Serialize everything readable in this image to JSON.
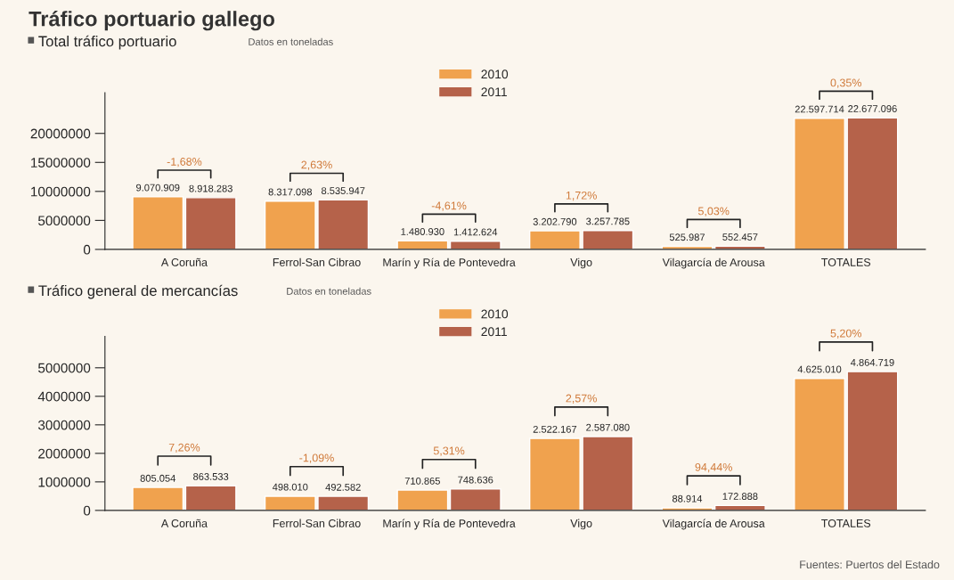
{
  "chart_data": [
    {
      "type": "bar",
      "title": "Tráfico portuario gallego",
      "subtitle": "Total tráfico portuario",
      "annotations": [
        "-1,68%",
        "2,63%",
        "-4,61%",
        "1,72%",
        "5,03%",
        "0,35%",
        "Datos en toneladas"
      ],
      "categories": [
        "A Coruña",
        "Ferrol-San Cibrao",
        "Marín y Ría de Pontevedra",
        "Vigo",
        "Vilagarcía de Arousa",
        "TOTALES"
      ],
      "series": [
        {
          "name": "2010",
          "color": "#f0a24e",
          "values": [
            9070909,
            8317098,
            1480930,
            3202790,
            525987,
            22597714
          ],
          "value_labels": [
            "9.070.909",
            "8.317.098",
            "1.480.930",
            "3.202.790",
            "525.987",
            "22.597.714"
          ]
        },
        {
          "name": "2011",
          "color": "#b5624a",
          "values": [
            8918283,
            8535947,
            1412624,
            3257785,
            552457,
            22677096
          ],
          "value_labels": [
            "8.918.283",
            "8.535.947",
            "1.412.624",
            "3.257.785",
            "552.457",
            "22.677.096"
          ]
        }
      ],
      "ylim": [
        0,
        27000000
      ],
      "yticks": [
        0,
        5000000,
        10000000,
        15000000,
        20000000
      ],
      "legend": "top",
      "grid": false
    },
    {
      "type": "bar",
      "title": "Tráfico general de mercancías",
      "annotations": [
        "7,26%",
        "-1,09%",
        "5,31%",
        "2,57%",
        "94,44%",
        "5,20%",
        "Datos en toneladas",
        "Fuentes: Puertos del Estado"
      ],
      "categories": [
        "A Coruña",
        "Ferrol-San Cibrao",
        "Marín y Ría de Pontevedra",
        "Vigo",
        "Vilagarcía de Arousa",
        "TOTALES"
      ],
      "series": [
        {
          "name": "2010",
          "color": "#f0a24e",
          "values": [
            805054,
            498010,
            710865,
            2522167,
            88914,
            4625010
          ],
          "value_labels": [
            "805.054",
            "498.010",
            "710.865",
            "2.522.167",
            "88.914",
            "4.625.010"
          ]
        },
        {
          "name": "2011",
          "color": "#b5624a",
          "values": [
            863533,
            492582,
            748636,
            2587080,
            172888,
            4864719
          ],
          "value_labels": [
            "863.533",
            "492.582",
            "748.636",
            "2.587.080",
            "172.888",
            "4.864.719"
          ]
        }
      ],
      "ylim": [
        0,
        6100000
      ],
      "yticks": [
        0,
        1000000,
        2000000,
        3000000,
        4000000,
        5000000
      ],
      "legend": "top",
      "grid": false
    }
  ]
}
